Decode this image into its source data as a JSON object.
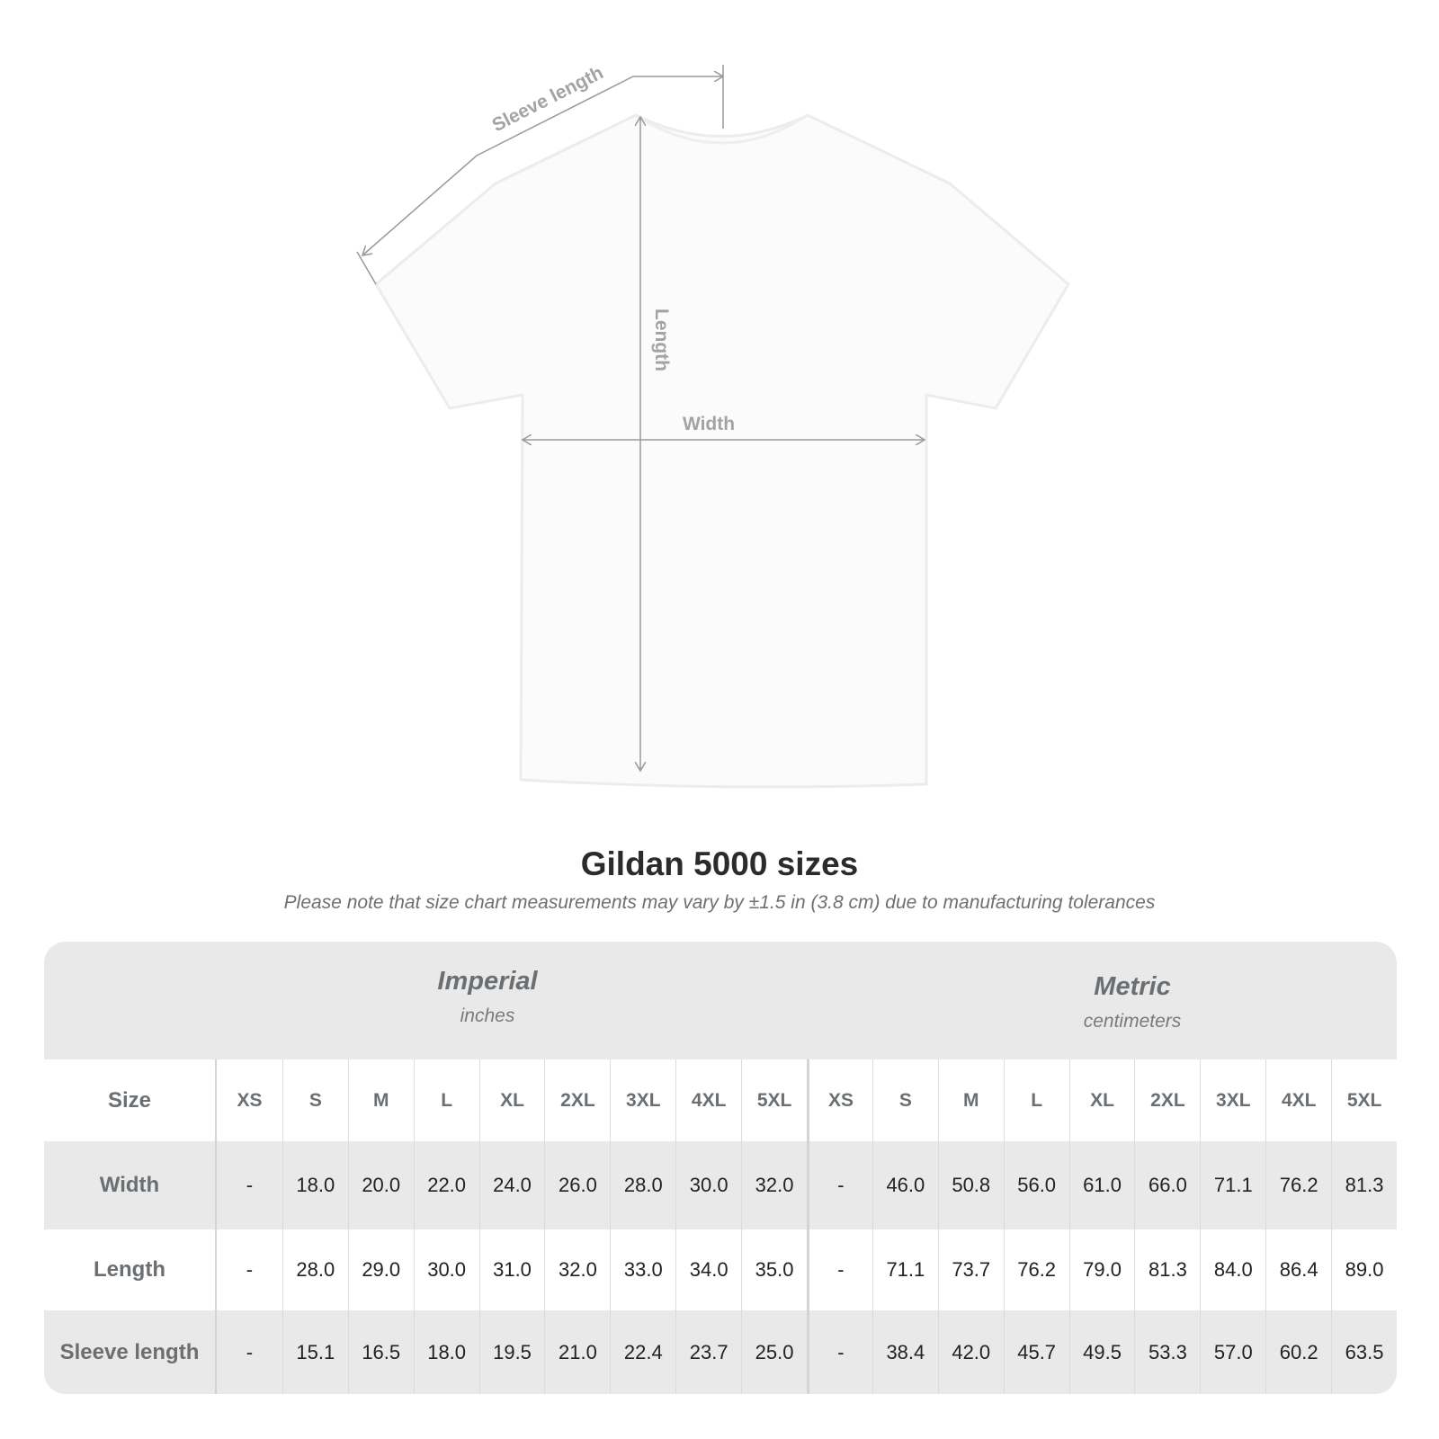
{
  "diagram": {
    "sleeve_label": "Sleeve length",
    "length_label": "Length",
    "width_label": "Width"
  },
  "title": "Gildan 5000 sizes",
  "note": "Please note that size chart measurements may vary by ±1.5 in (3.8 cm) due to manufacturing tolerances",
  "table": {
    "imperial": {
      "name": "Imperial",
      "unit": "inches"
    },
    "metric": {
      "name": "Metric",
      "unit": "centimeters"
    },
    "size_label": "Size",
    "sizes": [
      "XS",
      "S",
      "M",
      "L",
      "XL",
      "2XL",
      "3XL",
      "4XL",
      "5XL"
    ],
    "rows": [
      {
        "label": "Width",
        "imperial": [
          "-",
          "18.0",
          "20.0",
          "22.0",
          "24.0",
          "26.0",
          "28.0",
          "30.0",
          "32.0"
        ],
        "metric": [
          "-",
          "46.0",
          "50.8",
          "56.0",
          "61.0",
          "66.0",
          "71.1",
          "76.2",
          "81.3"
        ]
      },
      {
        "label": "Length",
        "imperial": [
          "-",
          "28.0",
          "29.0",
          "30.0",
          "31.0",
          "32.0",
          "33.0",
          "34.0",
          "35.0"
        ],
        "metric": [
          "-",
          "71.1",
          "73.7",
          "76.2",
          "79.0",
          "81.3",
          "84.0",
          "86.4",
          "89.0"
        ]
      },
      {
        "label": "Sleeve length",
        "imperial": [
          "-",
          "15.1",
          "16.5",
          "18.0",
          "19.5",
          "21.0",
          "22.4",
          "23.7",
          "25.0"
        ],
        "metric": [
          "-",
          "38.4",
          "42.0",
          "45.7",
          "49.5",
          "53.3",
          "57.0",
          "60.2",
          "63.5"
        ]
      }
    ]
  }
}
